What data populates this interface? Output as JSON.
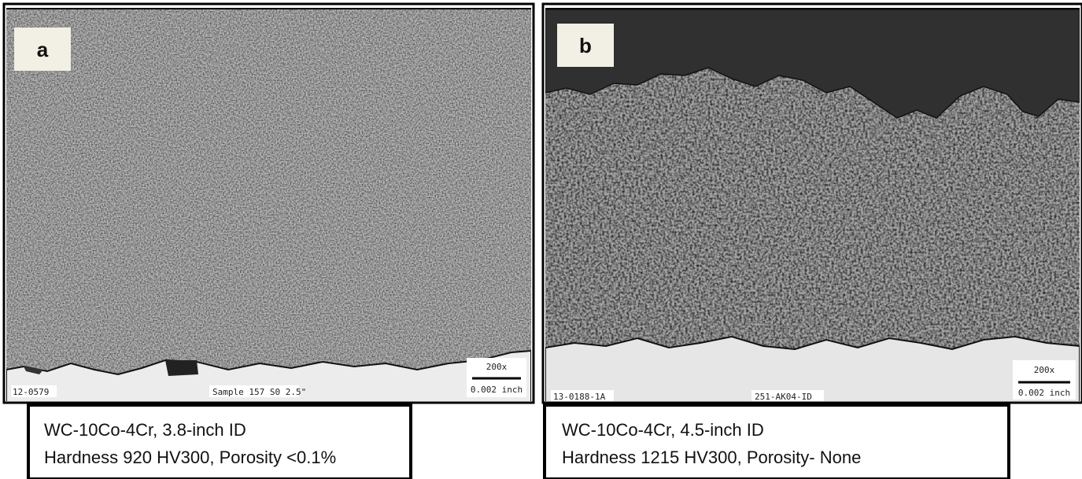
{
  "panels": [
    {
      "label": "a",
      "sample_id": "12-0579",
      "sample_note": "Sample 157 S0 2.5\"",
      "magnification": "200x",
      "scale": "0.002 inch",
      "caption": [
        "WC-10Co-4Cr, 3.8-inch ID",
        "Hardness 920 HV300, Porosity <0.1%"
      ]
    },
    {
      "label": "b",
      "sample_id": "13-0188-1A",
      "sample_note": "251-AK04-ID",
      "magnification": "200x",
      "scale": "0.002 inch",
      "caption": [
        "WC-10Co-4Cr, 4.5-inch ID",
        "Hardness 1215 HV300, Porosity- None"
      ]
    }
  ]
}
